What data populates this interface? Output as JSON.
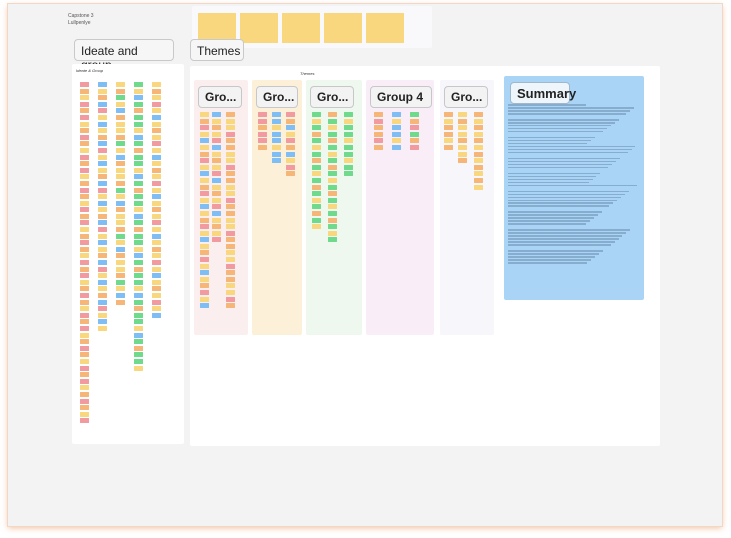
{
  "project": {
    "title": "Capstone 3",
    "author": "Lullpenlye"
  },
  "sections": {
    "ideate": "Ideate and group",
    "themes": "Themes"
  },
  "ideate_board": {
    "title": "Ideate & Group"
  },
  "themes_board": {
    "title": "Themes"
  },
  "groups": [
    {
      "label": "Gro..."
    },
    {
      "label": "Gro..."
    },
    {
      "label": "Gro..."
    },
    {
      "label": "Group 4"
    },
    {
      "label": "Gro..."
    }
  ],
  "summary": {
    "label": "Summary"
  },
  "colors": {
    "yellow": "#f8d77f",
    "orange": "#f6b678",
    "pink": "#f19aa0",
    "blue": "#7fbef4",
    "green": "#6fd98c",
    "summary_bg": "#a9d4f5"
  }
}
